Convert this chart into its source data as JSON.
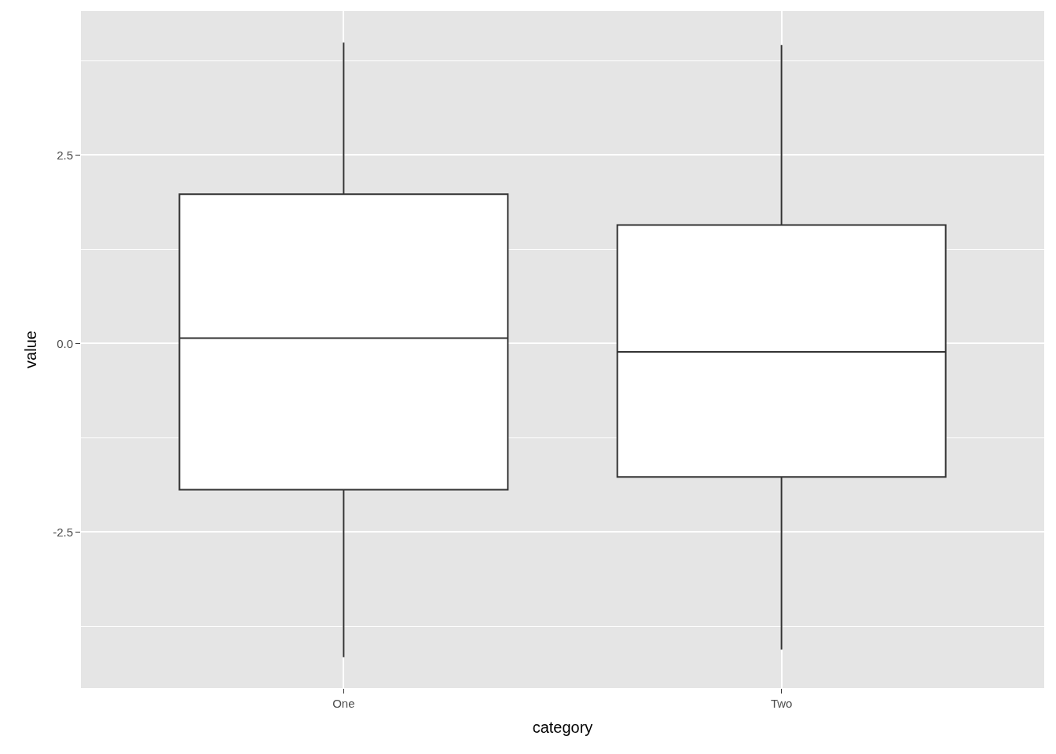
{
  "chart_data": {
    "type": "box",
    "xlabel": "category",
    "ylabel": "value",
    "categories": [
      "One",
      "Two"
    ],
    "boxes": [
      {
        "low": -4.16,
        "q1": -1.94,
        "median": 0.07,
        "q3": 1.98,
        "high": 3.99
      },
      {
        "low": -4.06,
        "q1": -1.77,
        "median": -0.11,
        "q3": 1.57,
        "high": 3.96
      }
    ],
    "color": "#333333",
    "ylim": [
      -4.57,
      4.41
    ],
    "yticks": [
      {
        "value": -2.5,
        "label": "-2.5"
      },
      {
        "value": 0,
        "label": "0.0"
      },
      {
        "value": 2.5,
        "label": "2.5"
      }
    ],
    "grid": true,
    "legend": false
  }
}
